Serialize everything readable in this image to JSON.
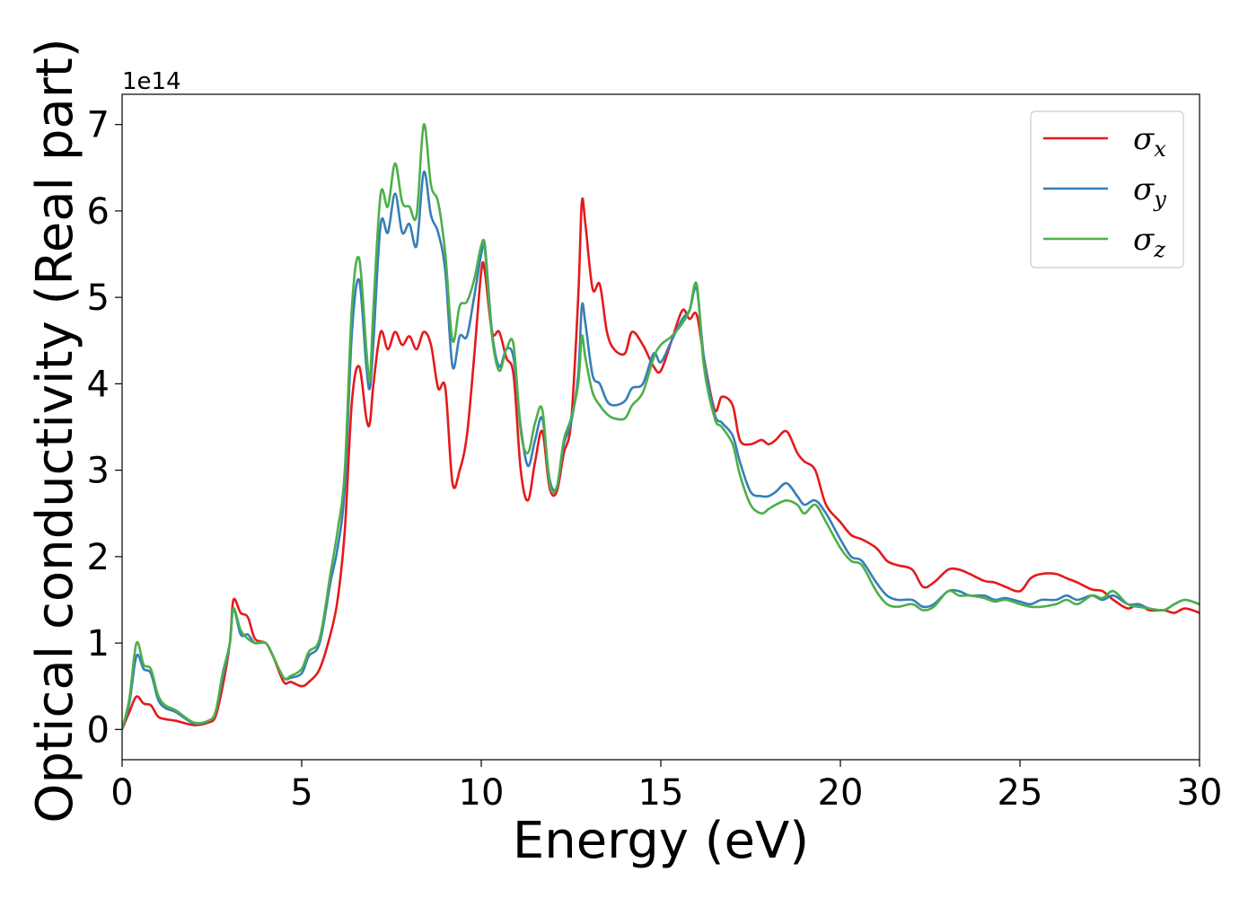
{
  "chart_data": {
    "type": "line",
    "title": "",
    "xlabel": "Energy (eV)",
    "ylabel": "Optical conductivity (Real part)",
    "y_offset_label": "1e14",
    "xlim": [
      0,
      30
    ],
    "ylim": [
      -0.35,
      7.35
    ],
    "xticks": [
      0,
      5,
      10,
      15,
      20,
      25,
      30
    ],
    "yticks": [
      0,
      1,
      2,
      3,
      4,
      5,
      6,
      7
    ],
    "grid": false,
    "legend_position": "top-right",
    "series": [
      {
        "name": "σx",
        "legend_symbol": "σ",
        "legend_subscript": "x",
        "color": "#e41a1c",
        "x": [
          0,
          0.2,
          0.4,
          0.6,
          0.8,
          1.0,
          1.2,
          1.5,
          2.0,
          2.4,
          2.6,
          2.8,
          3.0,
          3.1,
          3.3,
          3.5,
          3.7,
          4.0,
          4.2,
          4.5,
          4.7,
          5.0,
          5.2,
          5.5,
          5.8,
          6.0,
          6.2,
          6.4,
          6.6,
          6.8,
          6.9,
          7.0,
          7.2,
          7.4,
          7.6,
          7.8,
          8.0,
          8.2,
          8.4,
          8.6,
          8.8,
          9.0,
          9.2,
          9.4,
          9.6,
          9.8,
          10.0,
          10.1,
          10.3,
          10.5,
          10.7,
          10.9,
          11.1,
          11.3,
          11.5,
          11.7,
          11.9,
          12.1,
          12.3,
          12.5,
          12.7,
          12.8,
          12.9,
          13.1,
          13.3,
          13.5,
          13.7,
          14.0,
          14.2,
          14.5,
          14.8,
          15.0,
          15.3,
          15.6,
          15.8,
          16.0,
          16.2,
          16.5,
          16.7,
          17.0,
          17.2,
          17.5,
          17.8,
          18.0,
          18.2,
          18.5,
          18.8,
          19.0,
          19.3,
          19.6,
          20.0,
          20.3,
          20.6,
          21.0,
          21.3,
          21.6,
          22.0,
          22.3,
          22.6,
          23.0,
          23.3,
          23.6,
          24.0,
          24.3,
          24.6,
          25.0,
          25.3,
          25.6,
          26.0,
          26.3,
          26.6,
          27.0,
          27.3,
          27.6,
          28.0,
          28.3,
          28.6,
          29.0,
          29.3,
          29.6,
          30.0
        ],
        "y": [
          0.0,
          0.2,
          0.38,
          0.3,
          0.28,
          0.15,
          0.12,
          0.1,
          0.05,
          0.08,
          0.15,
          0.5,
          1.0,
          1.5,
          1.35,
          1.3,
          1.05,
          1.0,
          0.85,
          0.55,
          0.55,
          0.5,
          0.55,
          0.7,
          1.1,
          1.5,
          2.3,
          3.8,
          4.2,
          3.6,
          3.55,
          4.0,
          4.6,
          4.4,
          4.6,
          4.45,
          4.55,
          4.4,
          4.6,
          4.45,
          3.95,
          3.95,
          2.85,
          3.0,
          3.4,
          4.3,
          5.3,
          5.3,
          4.6,
          4.6,
          4.3,
          4.1,
          3.0,
          2.65,
          3.1,
          3.45,
          2.8,
          2.75,
          3.2,
          3.55,
          5.0,
          6.1,
          5.85,
          5.1,
          5.15,
          4.6,
          4.4,
          4.35,
          4.6,
          4.45,
          4.2,
          4.15,
          4.5,
          4.85,
          4.75,
          4.8,
          4.3,
          3.7,
          3.85,
          3.75,
          3.35,
          3.3,
          3.35,
          3.3,
          3.35,
          3.45,
          3.2,
          3.1,
          3.0,
          2.6,
          2.4,
          2.25,
          2.2,
          2.1,
          1.95,
          1.9,
          1.85,
          1.65,
          1.7,
          1.85,
          1.85,
          1.8,
          1.72,
          1.7,
          1.65,
          1.6,
          1.75,
          1.8,
          1.8,
          1.75,
          1.7,
          1.62,
          1.6,
          1.5,
          1.4,
          1.45,
          1.38,
          1.38,
          1.35,
          1.4,
          1.35
        ]
      },
      {
        "name": "σy",
        "legend_symbol": "σ",
        "legend_subscript": "y",
        "color": "#377eb8",
        "x": [
          0,
          0.2,
          0.4,
          0.6,
          0.8,
          1.0,
          1.2,
          1.5,
          2.0,
          2.4,
          2.6,
          2.8,
          3.0,
          3.1,
          3.3,
          3.5,
          3.7,
          4.0,
          4.2,
          4.5,
          4.7,
          5.0,
          5.2,
          5.5,
          5.8,
          6.0,
          6.2,
          6.4,
          6.6,
          6.8,
          6.9,
          7.0,
          7.2,
          7.4,
          7.6,
          7.8,
          8.0,
          8.2,
          8.4,
          8.6,
          8.8,
          9.0,
          9.2,
          9.4,
          9.6,
          9.8,
          10.0,
          10.1,
          10.3,
          10.5,
          10.7,
          10.9,
          11.1,
          11.3,
          11.5,
          11.7,
          11.9,
          12.1,
          12.3,
          12.5,
          12.7,
          12.8,
          12.9,
          13.1,
          13.3,
          13.5,
          13.7,
          14.0,
          14.2,
          14.5,
          14.8,
          15.0,
          15.3,
          15.6,
          15.8,
          16.0,
          16.2,
          16.5,
          16.7,
          17.0,
          17.2,
          17.5,
          17.8,
          18.0,
          18.2,
          18.5,
          18.8,
          19.0,
          19.3,
          19.6,
          20.0,
          20.3,
          20.6,
          21.0,
          21.3,
          21.6,
          22.0,
          22.3,
          22.6,
          23.0,
          23.3,
          23.6,
          24.0,
          24.3,
          24.6,
          25.0,
          25.3,
          25.6,
          26.0,
          26.3,
          26.6,
          27.0,
          27.3,
          27.6,
          28.0,
          28.3,
          28.6,
          29.0,
          29.3,
          29.6,
          30.0
        ],
        "y": [
          0.0,
          0.3,
          0.85,
          0.7,
          0.65,
          0.35,
          0.25,
          0.2,
          0.07,
          0.1,
          0.2,
          0.6,
          1.0,
          1.4,
          1.1,
          1.1,
          1.0,
          1.0,
          0.85,
          0.6,
          0.6,
          0.65,
          0.85,
          1.0,
          1.7,
          2.1,
          2.8,
          4.6,
          5.2,
          4.2,
          3.95,
          4.5,
          5.85,
          5.75,
          6.2,
          5.75,
          5.85,
          5.6,
          6.45,
          5.95,
          5.75,
          5.3,
          4.2,
          4.55,
          4.55,
          5.0,
          5.5,
          5.6,
          4.6,
          4.2,
          4.4,
          4.3,
          3.5,
          3.05,
          3.35,
          3.6,
          2.9,
          2.8,
          3.3,
          3.55,
          4.1,
          4.9,
          4.7,
          4.1,
          4.0,
          3.8,
          3.75,
          3.8,
          3.95,
          4.0,
          4.35,
          4.25,
          4.5,
          4.75,
          4.85,
          5.1,
          4.3,
          3.65,
          3.55,
          3.4,
          3.1,
          2.75,
          2.7,
          2.7,
          2.75,
          2.85,
          2.7,
          2.6,
          2.65,
          2.5,
          2.2,
          2.0,
          1.95,
          1.7,
          1.55,
          1.5,
          1.5,
          1.42,
          1.45,
          1.6,
          1.6,
          1.55,
          1.55,
          1.5,
          1.52,
          1.48,
          1.45,
          1.5,
          1.5,
          1.55,
          1.5,
          1.55,
          1.5,
          1.55,
          1.45,
          1.45,
          1.4,
          1.38,
          1.45,
          1.5,
          1.45
        ]
      },
      {
        "name": "σz",
        "legend_symbol": "σ",
        "legend_subscript": "z",
        "color": "#4daf4a",
        "x": [
          0,
          0.2,
          0.4,
          0.6,
          0.8,
          1.0,
          1.2,
          1.5,
          2.0,
          2.4,
          2.6,
          2.8,
          3.0,
          3.1,
          3.3,
          3.5,
          3.7,
          4.0,
          4.2,
          4.5,
          4.7,
          5.0,
          5.2,
          5.5,
          5.8,
          6.0,
          6.2,
          6.4,
          6.6,
          6.8,
          6.9,
          7.0,
          7.2,
          7.4,
          7.6,
          7.8,
          8.0,
          8.2,
          8.4,
          8.6,
          8.8,
          9.0,
          9.2,
          9.4,
          9.6,
          9.8,
          10.0,
          10.1,
          10.3,
          10.5,
          10.7,
          10.9,
          11.1,
          11.3,
          11.5,
          11.7,
          11.9,
          12.1,
          12.3,
          12.5,
          12.7,
          12.8,
          12.9,
          13.1,
          13.3,
          13.5,
          13.7,
          14.0,
          14.2,
          14.5,
          14.8,
          15.0,
          15.3,
          15.6,
          15.8,
          16.0,
          16.2,
          16.5,
          16.7,
          17.0,
          17.2,
          17.5,
          17.8,
          18.0,
          18.2,
          18.5,
          18.8,
          19.0,
          19.3,
          19.6,
          20.0,
          20.3,
          20.6,
          21.0,
          21.3,
          21.6,
          22.0,
          22.3,
          22.6,
          23.0,
          23.3,
          23.6,
          24.0,
          24.3,
          24.6,
          25.0,
          25.3,
          25.6,
          26.0,
          26.3,
          26.6,
          27.0,
          27.3,
          27.6,
          28.0,
          28.3,
          28.6,
          29.0,
          29.3,
          29.6,
          30.0
        ],
        "y": [
          0.0,
          0.35,
          1.0,
          0.75,
          0.7,
          0.4,
          0.28,
          0.22,
          0.08,
          0.1,
          0.2,
          0.65,
          1.0,
          1.4,
          1.15,
          1.05,
          1.0,
          1.0,
          0.85,
          0.6,
          0.62,
          0.7,
          0.9,
          1.05,
          1.8,
          2.3,
          3.0,
          4.9,
          5.45,
          4.4,
          4.05,
          4.9,
          6.2,
          6.05,
          6.55,
          6.1,
          6.05,
          5.95,
          7.0,
          6.3,
          6.1,
          5.5,
          4.5,
          4.9,
          4.95,
          5.2,
          5.6,
          5.55,
          4.55,
          4.15,
          4.4,
          4.45,
          3.45,
          3.2,
          3.55,
          3.7,
          2.85,
          2.8,
          3.35,
          3.6,
          4.0,
          4.55,
          4.3,
          3.9,
          3.75,
          3.65,
          3.6,
          3.6,
          3.75,
          3.9,
          4.3,
          4.45,
          4.55,
          4.7,
          4.85,
          5.15,
          4.2,
          3.6,
          3.5,
          3.3,
          2.95,
          2.6,
          2.5,
          2.55,
          2.6,
          2.65,
          2.6,
          2.5,
          2.6,
          2.4,
          2.1,
          1.95,
          1.9,
          1.6,
          1.45,
          1.42,
          1.45,
          1.38,
          1.42,
          1.6,
          1.55,
          1.55,
          1.52,
          1.48,
          1.5,
          1.45,
          1.42,
          1.42,
          1.45,
          1.5,
          1.45,
          1.55,
          1.52,
          1.6,
          1.45,
          1.42,
          1.4,
          1.38,
          1.45,
          1.5,
          1.45
        ]
      }
    ]
  }
}
